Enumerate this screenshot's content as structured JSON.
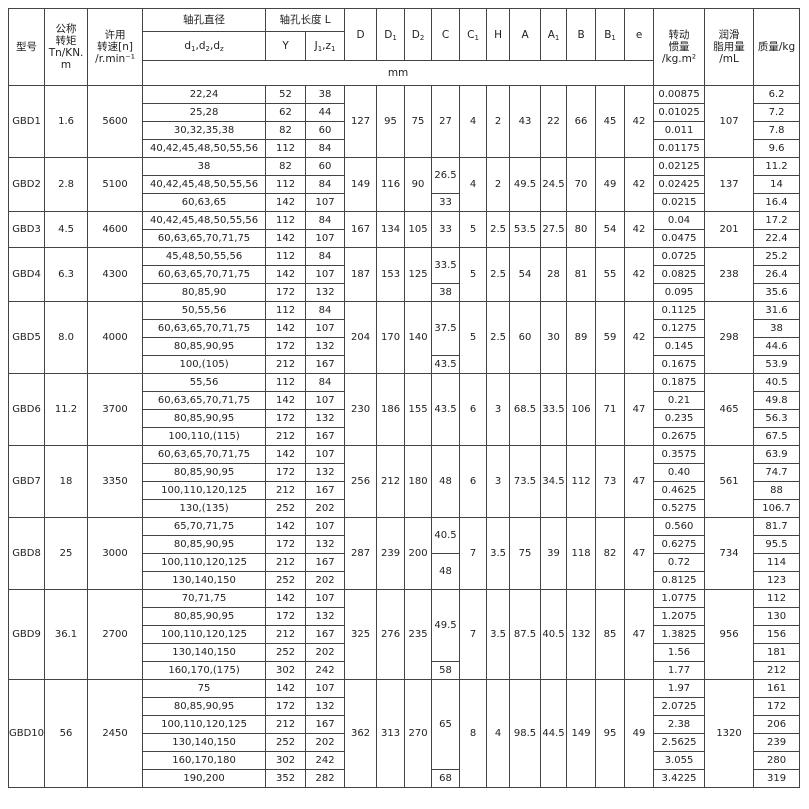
{
  "header": {
    "model": "型号",
    "torque": "公称\n转矩\nTn/KN.\nm",
    "speed": "许用\n转速[n]\n/r.min⁻¹",
    "bore_diameter": "轴孔直径",
    "bore_length": "轴孔长度 L",
    "bore_d": [
      {
        "t": "d",
        "s": "1"
      },
      {
        "t": ",d",
        "s": "2"
      },
      {
        "t": ",d",
        "s": "z"
      }
    ],
    "Y": [
      {
        "t": "Y",
        "s": ""
      }
    ],
    "J": [
      {
        "t": "J",
        "s": "1"
      },
      {
        "t": ",z",
        "s": "1"
      }
    ],
    "dims": [
      [
        {
          "t": "D",
          "s": ""
        }
      ],
      [
        {
          "t": "D",
          "s": "1"
        }
      ],
      [
        {
          "t": "D",
          "s": "2"
        }
      ],
      [
        {
          "t": "C",
          "s": ""
        }
      ],
      [
        {
          "t": "C",
          "s": "1"
        }
      ],
      [
        {
          "t": "H",
          "s": ""
        }
      ],
      [
        {
          "t": "A",
          "s": ""
        }
      ],
      [
        {
          "t": "A",
          "s": "1"
        }
      ],
      [
        {
          "t": "B",
          "s": ""
        }
      ],
      [
        {
          "t": "B",
          "s": "1"
        }
      ],
      [
        {
          "t": "e",
          "s": ""
        }
      ]
    ],
    "inertia": "转动\n惯量\n/kg.m²",
    "grease": "润滑\n脂用量\n/mL",
    "mass": "质量/kg",
    "unit": "mm"
  },
  "groups": [
    {
      "model": "GBD1",
      "torque": "1.6",
      "speed": "5600",
      "D": "127",
      "D1": "95",
      "D2": "75",
      "C": [
        {
          "v": "27",
          "span": 4
        }
      ],
      "C1": "4",
      "H": "2",
      "A": "43",
      "A1": "22",
      "B": "66",
      "B1": "45",
      "e": "42",
      "grease": "107",
      "rows": [
        {
          "d": "22,24",
          "Y": "52",
          "J": "38",
          "inertia": "0.00875",
          "mass": "6.2"
        },
        {
          "d": "25,28",
          "Y": "62",
          "J": "44",
          "inertia": "0.01025",
          "mass": "7.2"
        },
        {
          "d": "30,32,35,38",
          "Y": "82",
          "J": "60",
          "inertia": "0.011",
          "mass": "7.8"
        },
        {
          "d": "40,42,45,48,50,55,56",
          "Y": "112",
          "J": "84",
          "inertia": "0.01175",
          "mass": "9.6"
        }
      ]
    },
    {
      "model": "GBD2",
      "torque": "2.8",
      "speed": "5100",
      "D": "149",
      "D1": "116",
      "D2": "90",
      "C": [
        {
          "v": "26.5",
          "span": 2
        },
        {
          "v": "33",
          "span": 1
        }
      ],
      "C1": "4",
      "H": "2",
      "A": "49.5",
      "A1": "24.5",
      "B": "70",
      "B1": "49",
      "e": "42",
      "grease": "137",
      "rows": [
        {
          "d": "38",
          "Y": "82",
          "J": "60",
          "inertia": "0.02125",
          "mass": "11.2"
        },
        {
          "d": "40,42,45,48,50,55,56",
          "Y": "112",
          "J": "84",
          "inertia": "0.02425",
          "mass": "14"
        },
        {
          "d": "60,63,65",
          "Y": "142",
          "J": "107",
          "inertia": "0.0215",
          "mass": "16.4"
        }
      ]
    },
    {
      "model": "GBD3",
      "torque": "4.5",
      "speed": "4600",
      "D": "167",
      "D1": "134",
      "D2": "105",
      "C": [
        {
          "v": "33",
          "span": 2
        }
      ],
      "C1": "5",
      "H": "2.5",
      "A": "53.5",
      "A1": "27.5",
      "B": "80",
      "B1": "54",
      "e": "42",
      "grease": "201",
      "rows": [
        {
          "d": "40,42,45,48,50,55,56",
          "Y": "112",
          "J": "84",
          "inertia": "0.04",
          "mass": "17.2"
        },
        {
          "d": "60,63,65,70,71,75",
          "Y": "142",
          "J": "107",
          "inertia": "0.0475",
          "mass": "22.4"
        }
      ]
    },
    {
      "model": "GBD4",
      "torque": "6.3",
      "speed": "4300",
      "D": "187",
      "D1": "153",
      "D2": "125",
      "C": [
        {
          "v": "33.5",
          "span": 2
        },
        {
          "v": "38",
          "span": 1
        }
      ],
      "C1": "5",
      "H": "2.5",
      "A": "54",
      "A1": "28",
      "B": "81",
      "B1": "55",
      "e": "42",
      "grease": "238",
      "rows": [
        {
          "d": "45,48,50,55,56",
          "Y": "112",
          "J": "84",
          "inertia": "0.0725",
          "mass": "25.2"
        },
        {
          "d": "60,63,65,70,71,75",
          "Y": "142",
          "J": "107",
          "inertia": "0.0825",
          "mass": "26.4"
        },
        {
          "d": "80,85,90",
          "Y": "172",
          "J": "132",
          "inertia": "0.095",
          "mass": "35.6"
        }
      ]
    },
    {
      "model": "GBD5",
      "torque": "8.0",
      "speed": "4000",
      "D": "204",
      "D1": "170",
      "D2": "140",
      "C": [
        {
          "v": "37.5",
          "span": 3
        },
        {
          "v": "43.5",
          "span": 1
        }
      ],
      "C1": "5",
      "H": "2.5",
      "A": "60",
      "A1": "30",
      "B": "89",
      "B1": "59",
      "e": "42",
      "grease": "298",
      "rows": [
        {
          "d": "50,55,56",
          "Y": "112",
          "J": "84",
          "inertia": "0.1125",
          "mass": "31.6"
        },
        {
          "d": "60,63,65,70,71,75",
          "Y": "142",
          "J": "107",
          "inertia": "0.1275",
          "mass": "38"
        },
        {
          "d": "80,85,90,95",
          "Y": "172",
          "J": "132",
          "inertia": "0.145",
          "mass": "44.6"
        },
        {
          "d": "100,(105)",
          "Y": "212",
          "J": "167",
          "inertia": "0.1675",
          "mass": "53.9"
        }
      ]
    },
    {
      "model": "GBD6",
      "torque": "11.2",
      "speed": "3700",
      "D": "230",
      "D1": "186",
      "D2": "155",
      "C": [
        {
          "v": "43.5",
          "span": 4
        }
      ],
      "C1": "6",
      "H": "3",
      "A": "68.5",
      "A1": "33.5",
      "B": "106",
      "B1": "71",
      "e": "47",
      "grease": "465",
      "rows": [
        {
          "d": "55,56",
          "Y": "112",
          "J": "84",
          "inertia": "0.1875",
          "mass": "40.5"
        },
        {
          "d": "60,63,65,70,71,75",
          "Y": "142",
          "J": "107",
          "inertia": "0.21",
          "mass": "49.8"
        },
        {
          "d": "80,85,90,95",
          "Y": "172",
          "J": "132",
          "inertia": "0.235",
          "mass": "56.3"
        },
        {
          "d": "100,110,(115)",
          "Y": "212",
          "J": "167",
          "inertia": "0.2675",
          "mass": "67.5"
        }
      ]
    },
    {
      "model": "GBD7",
      "torque": "18",
      "speed": "3350",
      "D": "256",
      "D1": "212",
      "D2": "180",
      "C": [
        {
          "v": "48",
          "span": 4
        }
      ],
      "C1": "6",
      "H": "3",
      "A": "73.5",
      "A1": "34.5",
      "B": "112",
      "B1": "73",
      "e": "47",
      "grease": "561",
      "rows": [
        {
          "d": "60,63,65,70,71,75",
          "Y": "142",
          "J": "107",
          "inertia": "0.3575",
          "mass": "63.9"
        },
        {
          "d": "80,85,90,95",
          "Y": "172",
          "J": "132",
          "inertia": "0.40",
          "mass": "74.7"
        },
        {
          "d": "100,110,120,125",
          "Y": "212",
          "J": "167",
          "inertia": "0.4625",
          "mass": "88"
        },
        {
          "d": "130,(135)",
          "Y": "252",
          "J": "202",
          "inertia": "0.5275",
          "mass": "106.7"
        }
      ]
    },
    {
      "model": "GBD8",
      "torque": "25",
      "speed": "3000",
      "D": "287",
      "D1": "239",
      "D2": "200",
      "C": [
        {
          "v": "40.5",
          "span": 2
        },
        {
          "v": "48",
          "span": 2
        }
      ],
      "C1": "7",
      "H": "3.5",
      "A": "75",
      "A1": "39",
      "B": "118",
      "B1": "82",
      "e": "47",
      "grease": "734",
      "rows": [
        {
          "d": "65,70,71,75",
          "Y": "142",
          "J": "107",
          "inertia": "0.560",
          "mass": "81.7"
        },
        {
          "d": "80,85,90,95",
          "Y": "172",
          "J": "132",
          "inertia": "0.6275",
          "mass": "95.5"
        },
        {
          "d": "100,110,120,125",
          "Y": "212",
          "J": "167",
          "inertia": "0.72",
          "mass": "114"
        },
        {
          "d": "130,140,150",
          "Y": "252",
          "J": "202",
          "inertia": "0.8125",
          "mass": "123"
        }
      ]
    },
    {
      "model": "GBD9",
      "torque": "36.1",
      "speed": "2700",
      "D": "325",
      "D1": "276",
      "D2": "235",
      "C": [
        {
          "v": "49.5",
          "span": 4
        },
        {
          "v": "58",
          "span": 1
        }
      ],
      "C1": "7",
      "H": "3.5",
      "A": "87.5",
      "A1": "40.5",
      "B": "132",
      "B1": "85",
      "e": "47",
      "grease": "956",
      "rows": [
        {
          "d": "70,71,75",
          "Y": "142",
          "J": "107",
          "inertia": "1.0775",
          "mass": "112"
        },
        {
          "d": "80,85,90,95",
          "Y": "172",
          "J": "132",
          "inertia": "1.2075",
          "mass": "130"
        },
        {
          "d": "100,110,120,125",
          "Y": "212",
          "J": "167",
          "inertia": "1.3825",
          "mass": "156"
        },
        {
          "d": "130,140,150",
          "Y": "252",
          "J": "202",
          "inertia": "1.56",
          "mass": "181"
        },
        {
          "d": "160,170,(175)",
          "Y": "302",
          "J": "242",
          "inertia": "1.77",
          "mass": "212"
        }
      ]
    },
    {
      "model": "GBD10",
      "torque": "56",
      "speed": "2450",
      "D": "362",
      "D1": "313",
      "D2": "270",
      "C": [
        {
          "v": "65",
          "span": 5
        },
        {
          "v": "68",
          "span": 1
        }
      ],
      "C1": "8",
      "H": "4",
      "A": "98.5",
      "A1": "44.5",
      "B": "149",
      "B1": "95",
      "e": "49",
      "grease": "1320",
      "rows": [
        {
          "d": "75",
          "Y": "142",
          "J": "107",
          "inertia": "1.97",
          "mass": "161"
        },
        {
          "d": "80,85,90,95",
          "Y": "172",
          "J": "132",
          "inertia": "2.0725",
          "mass": "172"
        },
        {
          "d": "100,110,120,125",
          "Y": "212",
          "J": "167",
          "inertia": "2.38",
          "mass": "206"
        },
        {
          "d": "130,140,150",
          "Y": "252",
          "J": "202",
          "inertia": "2.5625",
          "mass": "239"
        },
        {
          "d": "160,170,180",
          "Y": "302",
          "J": "242",
          "inertia": "3.055",
          "mass": "280"
        },
        {
          "d": "190,200",
          "Y": "352",
          "J": "282",
          "inertia": "3.4225",
          "mass": "319"
        }
      ]
    }
  ]
}
